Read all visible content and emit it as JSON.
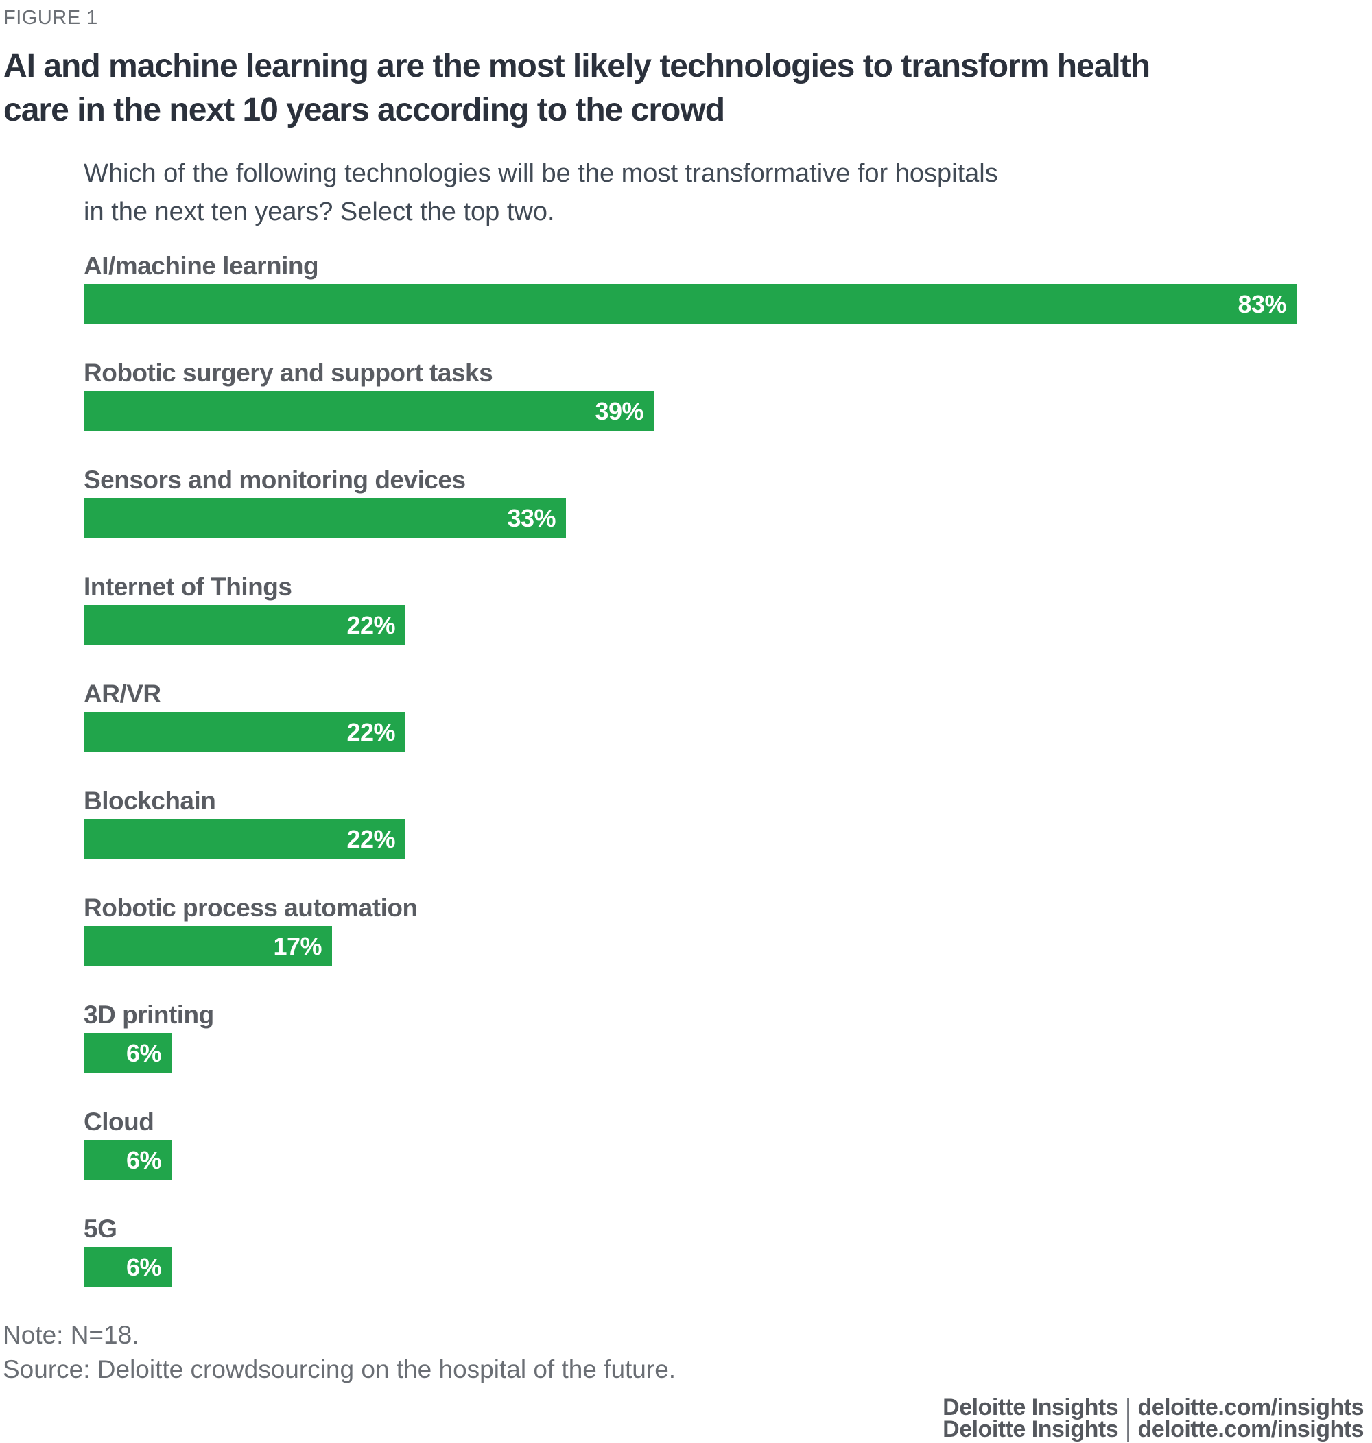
{
  "figure_label": "FIGURE 1",
  "title_lines": [
    "AI and machine learning are the most likely technologies to transform health",
    "care in the next 10 years according to the crowd"
  ],
  "subtitle_lines": [
    "Which of the following technologies will be the most transformative for hospitals",
    "in the next ten years? Select the top two."
  ],
  "chart_data": {
    "type": "bar",
    "orientation": "horizontal",
    "title": "AI and machine learning are the most likely technologies to transform health care in the next 10 years according to the crowd",
    "question": "Which of the following technologies will be the most transformative for hospitals in the next ten years? Select the top two.",
    "categories": [
      "AI/machine learning",
      "Robotic surgery and support tasks",
      "Sensors and monitoring devices",
      "Internet of Things",
      "AR/VR",
      "Blockchain",
      "Robotic process automation",
      "3D printing",
      "Cloud",
      "5G"
    ],
    "values": [
      83,
      39,
      33,
      22,
      22,
      22,
      17,
      6,
      6,
      6
    ],
    "value_suffix": "%",
    "value_labels": [
      "83%",
      "39%",
      "33%",
      "22%",
      "22%",
      "22%",
      "17%",
      "6%",
      "6%",
      "6%"
    ],
    "xlim": [
      0,
      100
    ],
    "grid": false,
    "legend": false,
    "bar_color": "#21A54B",
    "value_label_color": "#FFFFFF"
  },
  "note": "Note: N=18.",
  "source": "Source: Deloitte crowdsourcing on the hospital of the future.",
  "footer": {
    "brand": "Deloitte Insights",
    "separator": "|",
    "url": "deloitte.com/insights"
  }
}
